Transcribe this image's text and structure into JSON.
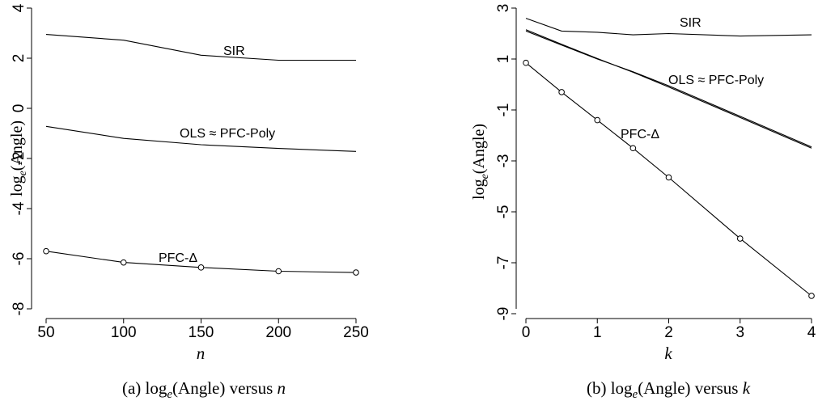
{
  "chart_data": [
    {
      "type": "line",
      "caption": "(a) log_e(Angle) versus n",
      "xlabel": "n",
      "ylabel": "log_e(Angle)",
      "xlim": [
        50,
        250
      ],
      "ylim": [
        -8,
        4
      ],
      "xticks": [
        50,
        100,
        150,
        200,
        250
      ],
      "yticks": [
        4,
        2,
        0,
        -2,
        -4,
        -6,
        -8
      ],
      "grid": false,
      "series": [
        {
          "name": "SIR",
          "x": [
            50,
            100,
            150,
            200,
            250
          ],
          "values": [
            2.95,
            2.72,
            2.12,
            1.92,
            1.92
          ],
          "markers": false
        },
        {
          "name": "OLS ≈ PFC-Poly",
          "x": [
            50,
            100,
            150,
            200,
            250
          ],
          "values": [
            -0.72,
            -1.2,
            -1.45,
            -1.6,
            -1.72
          ],
          "markers": false
        },
        {
          "name": "PFC-Δ",
          "x": [
            50,
            100,
            150,
            200,
            250
          ],
          "values": [
            -5.7,
            -6.15,
            -6.35,
            -6.5,
            -6.55
          ],
          "markers": true
        }
      ]
    },
    {
      "type": "line",
      "caption": "(b) log_e(Angle) versus k",
      "xlabel": "k",
      "ylabel": "log_e(Angle)",
      "xlim": [
        0,
        4
      ],
      "ylim": [
        -9,
        3
      ],
      "xticks": [
        0,
        1,
        2,
        3,
        4
      ],
      "yticks": [
        3,
        1,
        -1,
        -3,
        -5,
        -7,
        -9
      ],
      "grid": false,
      "series": [
        {
          "name": "SIR",
          "x": [
            0,
            0.5,
            1,
            1.5,
            2,
            3,
            4
          ],
          "values": [
            2.6,
            2.1,
            2.05,
            1.95,
            2.0,
            1.9,
            1.95
          ],
          "markers": false
        },
        {
          "name": "OLS",
          "x": [
            0,
            0.5,
            1,
            1.5,
            2,
            3,
            4
          ],
          "values": [
            2.1,
            1.55,
            1.0,
            0.5,
            -0.05,
            -1.25,
            -2.45
          ],
          "markers": false
        },
        {
          "name": "PFC-Poly",
          "x": [
            0,
            0.5,
            1,
            1.5,
            2,
            3,
            4
          ],
          "values": [
            2.15,
            1.58,
            1.02,
            0.48,
            -0.1,
            -1.3,
            -2.5
          ],
          "markers": false
        },
        {
          "name": "PFC-Δ",
          "x": [
            0,
            0.5,
            1,
            1.5,
            2,
            3,
            4
          ],
          "values": [
            0.85,
            -0.3,
            -1.4,
            -2.5,
            -3.65,
            -6.05,
            -8.3
          ],
          "markers": true
        }
      ]
    }
  ],
  "labels": {
    "a": {
      "sir": "SIR",
      "ols": "OLS ≈ PFC-Poly",
      "pfc": "PFC-Δ"
    },
    "b": {
      "sir": "SIR",
      "ols": "OLS ≈ PFC-Poly",
      "pfc": "PFC-Δ"
    }
  }
}
